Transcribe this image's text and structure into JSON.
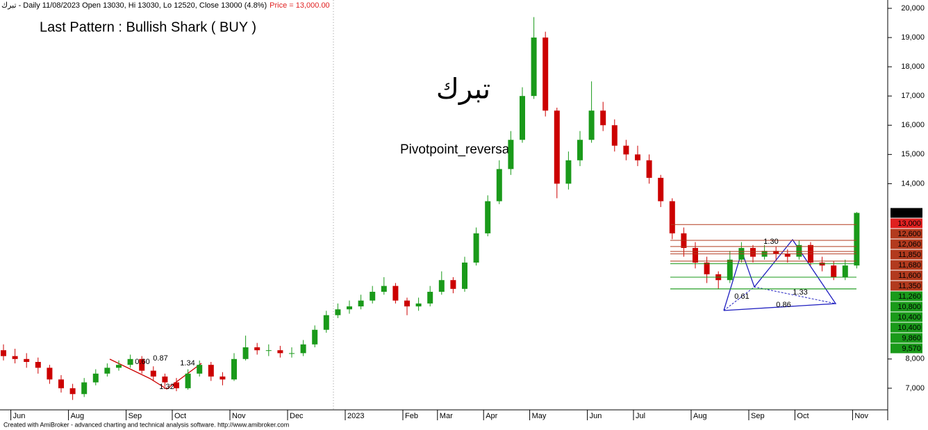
{
  "chart_data": {
    "type": "candlestick",
    "header": {
      "symbol": "تبرك",
      "info": " - Daily 11/08/2023 Open 13030, Hi 13030, Lo 12520, Close 13000 (4.8%)",
      "price": "Price = 13,000.00"
    },
    "pattern": "Last Pattern : Bullish Shark ( BUY )",
    "title": "تبرك",
    "subtitle": "Pivotpoint_reversal",
    "footer": "Created with AmiBroker - advanced charting and technical analysis software. http://www.amibroker.com",
    "categories": [
      null,
      "Jun",
      null,
      null,
      null,
      null,
      "Aug",
      null,
      null,
      null,
      null,
      "Sep",
      null,
      null,
      null,
      "Oct",
      null,
      null,
      null,
      null,
      "Nov",
      null,
      null,
      null,
      null,
      "Dec",
      null,
      null,
      null,
      null,
      "2023",
      null,
      null,
      null,
      null,
      "Feb",
      null,
      null,
      "Mar",
      null,
      null,
      null,
      "Apr",
      null,
      null,
      null,
      "May",
      null,
      null,
      null,
      null,
      "Jun",
      null,
      null,
      null,
      "Jul",
      null,
      null,
      null,
      null,
      "Aug",
      null,
      null,
      null,
      null,
      "Sep",
      null,
      null,
      null,
      "Oct",
      null,
      null,
      null,
      null,
      "Nov"
    ],
    "open": [
      8300,
      8100,
      8000,
      7900,
      7700,
      7300,
      7000,
      6800,
      7200,
      7500,
      7700,
      7800,
      8000,
      7600,
      7400,
      7200,
      7000,
      7500,
      7800,
      7400,
      7300,
      8000,
      8400,
      8300,
      8300,
      8200,
      8200,
      8500,
      9000,
      9500,
      9700,
      9800,
      10000,
      10300,
      10500,
      10000,
      9800,
      9900,
      10300,
      10700,
      10400,
      11300,
      12300,
      13400,
      14500,
      15500,
      17000,
      19000,
      16500,
      14000,
      14800,
      15500,
      16500,
      16000,
      15300,
      15000,
      14800,
      14200,
      13400,
      12300,
      11800,
      11300,
      10900,
      10700,
      11400,
      11800,
      11500,
      11700,
      11600,
      11500,
      11900,
      11300,
      11200,
      10800,
      11200
    ],
    "high": [
      8500,
      8350,
      8200,
      8050,
      7800,
      7450,
      7150,
      7350,
      7650,
      7850,
      7950,
      8150,
      8100,
      7750,
      7500,
      7350,
      7650,
      7950,
      7900,
      7550,
      8200,
      8800,
      8550,
      8500,
      8450,
      8400,
      8650,
      9150,
      9650,
      9900,
      10000,
      10200,
      10500,
      10800,
      10600,
      10100,
      10100,
      10500,
      11000,
      10800,
      11500,
      12500,
      13600,
      14800,
      15800,
      17300,
      19700,
      19200,
      16600,
      15100,
      15800,
      17500,
      16800,
      16200,
      15500,
      15300,
      15000,
      14300,
      13500,
      12500,
      12000,
      11500,
      11000,
      11700,
      12000,
      11900,
      11900,
      11850,
      11750,
      12060,
      12000,
      11500,
      11350,
      11400,
      13030
    ],
    "low": [
      7950,
      7850,
      7700,
      7500,
      7150,
      6850,
      6600,
      6700,
      7100,
      7400,
      7600,
      7700,
      7500,
      7250,
      7050,
      6900,
      6950,
      7400,
      7250,
      7100,
      7250,
      7950,
      8150,
      8100,
      8050,
      8050,
      8100,
      8400,
      8900,
      9400,
      9550,
      9700,
      9900,
      10200,
      9900,
      9500,
      9650,
      9800,
      10200,
      10250,
      10300,
      11200,
      12200,
      13300,
      14300,
      15400,
      16900,
      16300,
      13500,
      13800,
      14600,
      15400,
      15800,
      15100,
      14800,
      14600,
      14000,
      13200,
      12100,
      11500,
      11100,
      10600,
      10400,
      10600,
      11300,
      11300,
      11400,
      11400,
      11300,
      11400,
      11200,
      11000,
      10700,
      10700,
      11100
    ],
    "close": [
      8100,
      8000,
      7900,
      7700,
      7300,
      7000,
      6800,
      7200,
      7500,
      7700,
      7800,
      8000,
      7600,
      7400,
      7200,
      7000,
      7500,
      7800,
      7400,
      7300,
      8000,
      8400,
      8300,
      8300,
      8200,
      8200,
      8500,
      9000,
      9500,
      9700,
      9800,
      10000,
      10300,
      10500,
      10000,
      9800,
      9900,
      10300,
      10700,
      10400,
      11300,
      12300,
      13400,
      14500,
      15500,
      17000,
      19000,
      16500,
      14000,
      14800,
      15500,
      16500,
      16000,
      15300,
      15000,
      14800,
      14200,
      13400,
      12300,
      11800,
      11300,
      10900,
      10700,
      11400,
      11800,
      11500,
      11700,
      11600,
      11500,
      11900,
      11300,
      11200,
      10800,
      11200,
      13000
    ],
    "up_color": "#1a9a1a",
    "down_color": "#cc0000",
    "ylim": [
      6260,
      20285
    ],
    "yticks": [
      {
        "value": 7000,
        "label": "7,000"
      },
      {
        "value": 8000,
        "label": "8,000"
      },
      {
        "value": 14000,
        "label": "14,000"
      },
      {
        "value": 15000,
        "label": "15,000"
      },
      {
        "value": 16000,
        "label": "16,000"
      },
      {
        "value": 17000,
        "label": "17,000"
      },
      {
        "value": 18000,
        "label": "18,000"
      },
      {
        "value": 19000,
        "label": "19,000"
      },
      {
        "value": 20000,
        "label": "20,000"
      }
    ],
    "price_labels": [
      {
        "value": 13000,
        "label": "13,000",
        "color": "#000000"
      },
      {
        "value": 13000,
        "label": "13,000",
        "color": "#e02020"
      },
      {
        "value": 12600,
        "label": "12,600",
        "color": "#b23a1e"
      },
      {
        "value": 12060,
        "label": "12,060",
        "color": "#b23a1e"
      },
      {
        "value": 11850,
        "label": "11,850",
        "color": "#b23a1e"
      },
      {
        "value": 11680,
        "label": "11,680",
        "color": "#b23a1e"
      },
      {
        "value": 11600,
        "label": "11,600",
        "color": "#b23a1e"
      },
      {
        "value": 11350,
        "label": "11,350",
        "color": "#b23a1e"
      },
      {
        "value": 11260,
        "label": "11,260",
        "color": "#1a9a1a"
      },
      {
        "value": 10800,
        "label": "10,800",
        "color": "#1a9a1a"
      },
      {
        "value": 10400,
        "label": "10,400",
        "color": "#1a9a1a"
      },
      {
        "value": 10400,
        "label": "10,400",
        "color": "#1a9a1a"
      },
      {
        "value": 9860,
        "label": "9,860",
        "color": "#1a9a1a"
      },
      {
        "value": 9570,
        "label": "9,570",
        "color": "#1a9a1a"
      }
    ],
    "annotations": [
      "1.30",
      "0.61",
      "1.33",
      "0.86",
      "0.60",
      "0.87",
      "1.34",
      "1.32"
    ]
  }
}
